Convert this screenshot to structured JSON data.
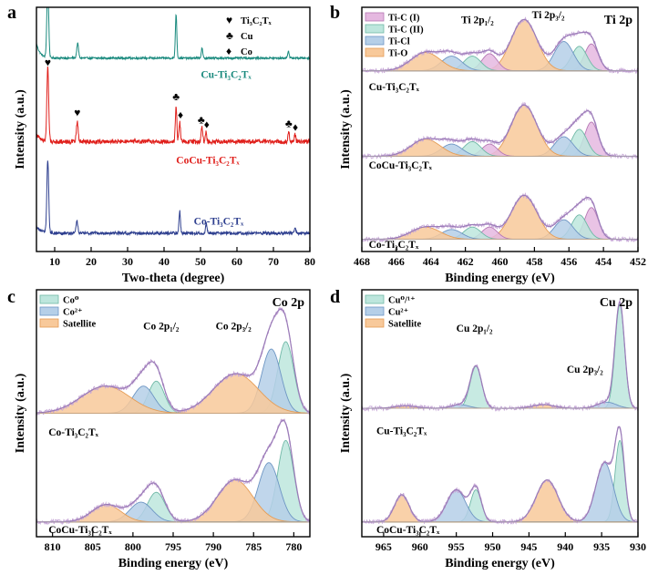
{
  "chart_data": [
    {
      "id": "a",
      "type": "line",
      "panel_label": "a",
      "xlabel": "Two-theta (degree)",
      "ylabel": "Intensity (a.u.)",
      "xlim": [
        5,
        80
      ],
      "xticks": [
        10,
        20,
        30,
        40,
        50,
        60,
        70,
        80
      ],
      "x_reversed": false,
      "series": [
        {
          "name": "Cu-Ti₃C₂Tₓ",
          "color": "#1a8a7e",
          "offset": 0.78,
          "base": 0.012,
          "noise": 0.004,
          "slope": 0.0,
          "rise": [
            0.06,
            7.5
          ],
          "peaks": [
            [
              8.1,
              0.3,
              0.25
            ],
            [
              16.3,
              0.06,
              0.25
            ],
            [
              43.3,
              0.18,
              0.2
            ],
            [
              50.4,
              0.04,
              0.2
            ],
            [
              74.1,
              0.03,
              0.2
            ]
          ]
        },
        {
          "name": "CoCu-Ti₃C₂Tₓ",
          "color": "#e0201c",
          "offset": 0.43,
          "base": 0.02,
          "noise": 0.009,
          "slope": 0.0,
          "rise": [
            0.03,
            8.0
          ],
          "peaks": [
            [
              8.1,
              0.3,
              0.25
            ],
            [
              16.2,
              0.08,
              0.25
            ],
            [
              43.3,
              0.15,
              0.2
            ],
            [
              44.3,
              0.08,
              0.2
            ],
            [
              50.4,
              0.06,
              0.2
            ],
            [
              51.5,
              0.04,
              0.2
            ],
            [
              74.2,
              0.04,
              0.2
            ],
            [
              75.9,
              0.03,
              0.2
            ]
          ]
        },
        {
          "name": "Co-Ti₃C₂Tₓ",
          "color": "#2e3f8f",
          "offset": 0.06,
          "base": 0.015,
          "noise": 0.006,
          "slope": 0.0,
          "rise": [
            0.03,
            8.0
          ],
          "peaks": [
            [
              8.1,
              0.3,
              0.25
            ],
            [
              16.1,
              0.05,
              0.25
            ],
            [
              44.3,
              0.09,
              0.2
            ],
            [
              51.6,
              0.04,
              0.2
            ],
            [
              75.9,
              0.025,
              0.2
            ]
          ]
        }
      ],
      "legend": [
        {
          "symbol": "♥",
          "label": "Ti₃C₂Tₓ"
        },
        {
          "symbol": "♣",
          "label": "Cu"
        },
        {
          "symbol": "♦",
          "label": "Co"
        }
      ],
      "markers": [
        {
          "symbol": "♥",
          "x": 8.1,
          "y": 0.76
        },
        {
          "symbol": "♥",
          "x": 16.2,
          "y": 0.555
        },
        {
          "symbol": "♣",
          "x": 43.3,
          "y": 0.62
        },
        {
          "symbol": "♦",
          "x": 44.5,
          "y": 0.545
        },
        {
          "symbol": "♣",
          "x": 50.2,
          "y": 0.525
        },
        {
          "symbol": "♦",
          "x": 51.7,
          "y": 0.505
        },
        {
          "symbol": "♣",
          "x": 74.2,
          "y": 0.51
        },
        {
          "symbol": "♦",
          "x": 76.0,
          "y": 0.495
        }
      ],
      "labels": [
        {
          "text": "Cu-Ti₃C₂Tₓ",
          "x": 57,
          "y": 0.71,
          "color": "#1a8a7e"
        },
        {
          "text": "CoCu-Ti₃C₂Tₓ",
          "x": 52,
          "y": 0.36,
          "color": "#e0201c"
        },
        {
          "text": "Co-Ti₃C₂Tₓ",
          "x": 55,
          "y": 0.11,
          "color": "#2e3f8f"
        }
      ]
    },
    {
      "id": "b",
      "type": "line",
      "panel_label": "b",
      "title": "Ti 2p",
      "xlabel": "Binding energy (eV)",
      "ylabel": "Intensity (a.u.)",
      "xlim": [
        468,
        452
      ],
      "xticks": [
        468,
        466,
        464,
        462,
        460,
        458,
        456,
        454,
        452
      ],
      "x_reversed": true,
      "component_styles": [
        {
          "name": "Ti-C (I)",
          "fill": "#e5b8e0",
          "stroke": "#b577b4"
        },
        {
          "name": "Ti-C (II)",
          "fill": "#bde6dd",
          "stroke": "#6fb8a6"
        },
        {
          "name": "Ti-Cl",
          "fill": "#b5cfe8",
          "stroke": "#6d95c3"
        },
        {
          "name": "Ti-O",
          "fill": "#f8c99a",
          "stroke": "#e59c55"
        }
      ],
      "legend": [
        "Ti-C (I)",
        "Ti-C (II)",
        "Ti-Cl",
        "Ti-O"
      ],
      "annotations": [
        {
          "text": "Ti 2p₁/₂",
          "x": 461.3,
          "y": 0.935
        },
        {
          "text": "Ti 2p₃/₂",
          "x": 457.2,
          "y": 0.955
        }
      ],
      "spectra": [
        {
          "name": "Cu-Ti₃C₂Tₓ",
          "offset": 0.74,
          "label_x": 467.6,
          "label_y": 0.66,
          "components": [
            [
              454.7,
              0.11,
              0.4,
              0
            ],
            [
              455.4,
              0.1,
              0.45,
              1
            ],
            [
              456.3,
              0.12,
              0.55,
              2
            ],
            [
              458.6,
              0.21,
              0.75,
              3
            ],
            [
              460.6,
              0.07,
              0.45,
              0
            ],
            [
              461.6,
              0.06,
              0.5,
              1
            ],
            [
              462.8,
              0.06,
              0.6,
              2
            ],
            [
              464.3,
              0.075,
              0.85,
              3
            ]
          ]
        },
        {
          "name": "CoCu-Ti₃C₂Tₓ",
          "offset": 0.39,
          "label_x": 467.6,
          "label_y": 0.34,
          "components": [
            [
              454.7,
              0.14,
              0.4,
              0
            ],
            [
              455.4,
              0.11,
              0.45,
              1
            ],
            [
              456.3,
              0.08,
              0.55,
              2
            ],
            [
              458.6,
              0.21,
              0.75,
              3
            ],
            [
              460.6,
              0.05,
              0.45,
              0
            ],
            [
              461.6,
              0.06,
              0.5,
              1
            ],
            [
              462.8,
              0.05,
              0.6,
              2
            ],
            [
              464.3,
              0.07,
              0.85,
              3
            ]
          ]
        },
        {
          "name": "Co-Ti₃C₂Tₓ",
          "offset": 0.05,
          "label_x": 467.6,
          "label_y": 0.015,
          "components": [
            [
              454.7,
              0.13,
              0.4,
              0
            ],
            [
              455.4,
              0.1,
              0.45,
              1
            ],
            [
              456.3,
              0.08,
              0.55,
              2
            ],
            [
              458.6,
              0.18,
              0.75,
              3
            ],
            [
              460.6,
              0.05,
              0.45,
              0
            ],
            [
              461.6,
              0.05,
              0.5,
              1
            ],
            [
              462.8,
              0.04,
              0.6,
              2
            ],
            [
              464.3,
              0.05,
              0.85,
              3
            ]
          ]
        }
      ]
    },
    {
      "id": "c",
      "type": "line",
      "panel_label": "c",
      "title": "Co 2p",
      "xlabel": "Binding energy (eV)",
      "ylabel": "Intensity (a.u.)",
      "xlim": [
        812,
        778
      ],
      "xticks": [
        810,
        805,
        800,
        795,
        790,
        785,
        780
      ],
      "x_reversed": true,
      "component_styles": [
        {
          "name": "Co⁰",
          "fill": "#bde6dd",
          "stroke": "#6fb8a6"
        },
        {
          "name": "Co²⁺",
          "fill": "#b5cfe8",
          "stroke": "#6d95c3"
        },
        {
          "name": "Satellite",
          "fill": "#f8c99a",
          "stroke": "#e59c55"
        }
      ],
      "legend": [
        "Co⁰",
        "Co²⁺",
        "Satellite"
      ],
      "annotations": [
        {
          "text": "Co 2p₁/₂",
          "x": 796.5,
          "y": 0.84
        },
        {
          "text": "Co 2p₃/₂",
          "x": 787.5,
          "y": 0.84
        }
      ],
      "spectra": [
        {
          "name": "Co-Ti₃C₂Tₓ",
          "offset": 0.5,
          "label_x": 810.5,
          "label_y": 0.41,
          "components": [
            [
              781.0,
              0.29,
              1.0,
              0
            ],
            [
              782.8,
              0.26,
              1.2,
              1
            ],
            [
              787.2,
              0.16,
              2.8,
              2
            ],
            [
              797.1,
              0.13,
              1.0,
              0
            ],
            [
              798.7,
              0.11,
              1.3,
              1
            ],
            [
              803.4,
              0.11,
              3.0,
              2
            ]
          ]
        },
        {
          "name": "CoCu-Ti₃C₂Tₓ",
          "offset": 0.06,
          "label_x": 810.5,
          "label_y": 0.015,
          "components": [
            [
              781.0,
              0.33,
              1.0,
              0
            ],
            [
              783.1,
              0.24,
              1.3,
              1
            ],
            [
              787.3,
              0.17,
              2.2,
              2
            ],
            [
              797.1,
              0.12,
              1.1,
              0
            ],
            [
              799.0,
              0.08,
              1.4,
              1
            ],
            [
              803.3,
              0.07,
              1.8,
              2
            ]
          ]
        }
      ]
    },
    {
      "id": "d",
      "type": "line",
      "panel_label": "d",
      "title": "Cu 2p",
      "xlabel": "Binding energy (eV)",
      "ylabel": "Intensity (a.u.)",
      "xlim": [
        968,
        930
      ],
      "xticks": [
        965,
        960,
        955,
        950,
        945,
        940,
        935,
        930
      ],
      "x_reversed": true,
      "component_styles": [
        {
          "name": "Cu⁰/¹⁺",
          "fill": "#bde6dd",
          "stroke": "#6fb8a6"
        },
        {
          "name": "Cu²⁺",
          "fill": "#b5cfe8",
          "stroke": "#6d95c3"
        },
        {
          "name": "Satellite",
          "fill": "#f8c99a",
          "stroke": "#e59c55"
        }
      ],
      "legend": [
        "Cu⁰/¹⁺",
        "Cu²⁺",
        "Satellite"
      ],
      "annotations": [
        {
          "text": "Cu 2p₁/₂",
          "x": 952.5,
          "y": 0.83
        },
        {
          "text": "Cu 2p₃/₂",
          "x": 937.3,
          "y": 0.665
        }
      ],
      "spectra": [
        {
          "name": "Cu-Ti₃C₂Tₓ",
          "offset": 0.52,
          "label_x": 966,
          "label_y": 0.415,
          "components": [
            [
              932.5,
              0.42,
              0.65,
              0
            ],
            [
              934.3,
              0.025,
              1.3,
              1
            ],
            [
              943.0,
              0.015,
              1.5,
              2
            ],
            [
              952.3,
              0.17,
              0.8,
              0
            ],
            [
              954.5,
              0.015,
              1.2,
              1
            ],
            [
              962.0,
              0.01,
              1.5,
              2
            ]
          ]
        },
        {
          "name": "CoCu-Ti₃C₂Tₓ",
          "offset": 0.06,
          "label_x": 966,
          "label_y": 0.015,
          "components": [
            [
              932.5,
              0.33,
              0.65,
              0
            ],
            [
              934.6,
              0.24,
              1.2,
              1
            ],
            [
              942.5,
              0.17,
              1.5,
              2
            ],
            [
              952.3,
              0.13,
              0.75,
              0
            ],
            [
              955.0,
              0.13,
              1.3,
              1
            ],
            [
              962.5,
              0.11,
              1.0,
              2
            ]
          ]
        }
      ]
    }
  ]
}
